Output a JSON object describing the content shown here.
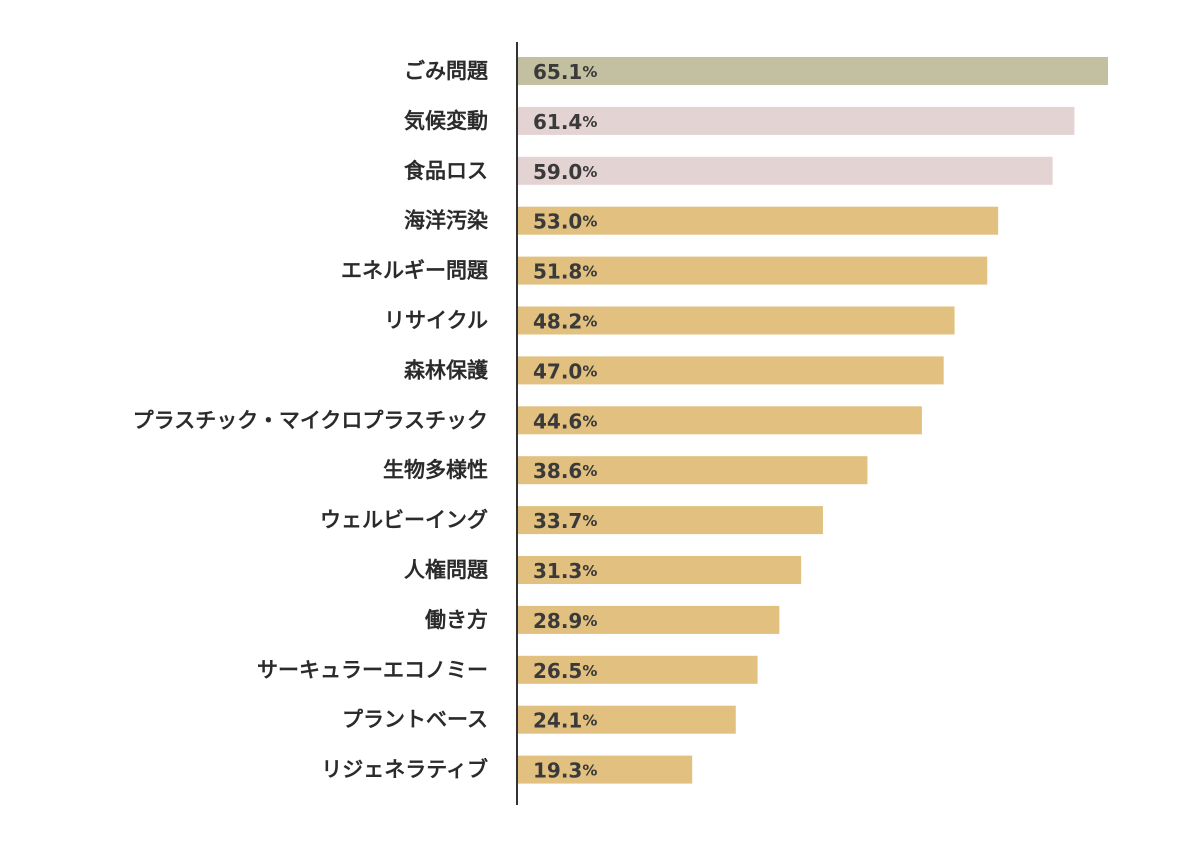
{
  "chart_data": {
    "type": "bar",
    "orientation": "horizontal",
    "title": "",
    "xlabel": "",
    "ylabel": "",
    "xlim": [
      0,
      65.1
    ],
    "grid": false,
    "unit": "%",
    "categories": [
      "ごみ問題",
      "気候変動",
      "食品ロス",
      "海洋汚染",
      "エネルギー問題",
      "リサイクル",
      "森林保護",
      "プラスチック・マイクロプラスチック",
      "生物多様性",
      "ウェルビーイング",
      "人権問題",
      "働き方",
      "サーキュラーエコノミー",
      "プラントベース",
      "リジェネラティブ"
    ],
    "values": [
      65.1,
      61.4,
      59.0,
      53.0,
      51.8,
      48.2,
      47.0,
      44.6,
      38.6,
      33.7,
      31.3,
      28.9,
      26.5,
      24.1,
      19.3
    ],
    "value_labels": [
      "65.1",
      "61.4",
      "59.0",
      "53.0",
      "51.8",
      "48.2",
      "47.0",
      "44.6",
      "38.6",
      "33.7",
      "31.3",
      "28.9",
      "26.5",
      "24.1",
      "19.3"
    ],
    "bar_colors": [
      "#c2c0a0",
      "#e4d3d3",
      "#e4d3d3",
      "#e1c080",
      "#e1c080",
      "#e1c080",
      "#e1c080",
      "#e1c080",
      "#e1c080",
      "#e1c080",
      "#e1c080",
      "#e1c080",
      "#e1c080",
      "#e1c080",
      "#e1c080"
    ],
    "axis_color": "#333333"
  }
}
